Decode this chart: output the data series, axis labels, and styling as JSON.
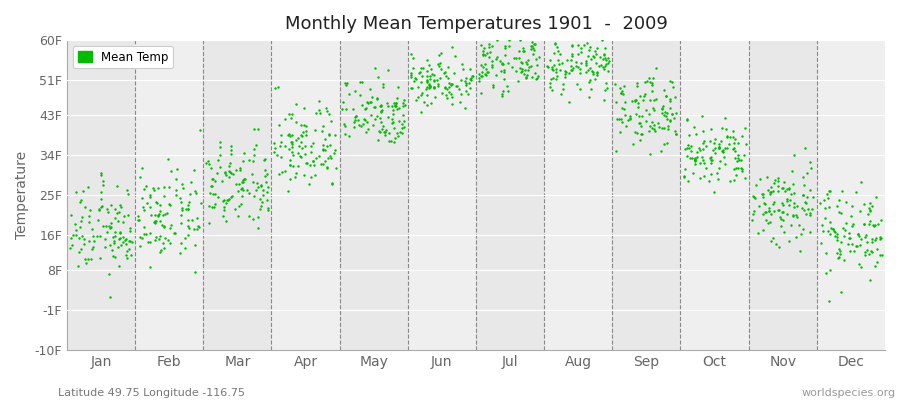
{
  "title": "Monthly Mean Temperatures 1901  -  2009",
  "ylabel": "Temperature",
  "xlabel_lat_lon": "Latitude 49.75 Longitude -116.75",
  "watermark": "worldspecies.org",
  "dot_color": "#00bb00",
  "dot_size": 3,
  "ylim": [
    -10,
    60
  ],
  "yticks": [
    -10,
    -1,
    8,
    16,
    25,
    34,
    43,
    51,
    60
  ],
  "ytick_labels": [
    "-10F",
    "-1F",
    "8F",
    "16F",
    "25F",
    "34F",
    "43F",
    "51F",
    "60F"
  ],
  "months": [
    "Jan",
    "Feb",
    "Mar",
    "Apr",
    "May",
    "Jun",
    "Jul",
    "Aug",
    "Sep",
    "Oct",
    "Nov",
    "Dec"
  ],
  "monthly_means_F": [
    17,
    20,
    27,
    36,
    44,
    51,
    55,
    54,
    44,
    34,
    23,
    17
  ],
  "monthly_stds_F": [
    5,
    5,
    5,
    5,
    4,
    3,
    3,
    3,
    4,
    4,
    5,
    5
  ],
  "n_years": 109,
  "band_colors": [
    "#e8e8e8",
    "#efefef"
  ],
  "grid_color": "#ffffff",
  "spine_color": "#aaaaaa",
  "tick_color": "#666666",
  "vline_color": "#888888",
  "legend_edge_color": "#cccccc",
  "bg_color": "#f0f0f0"
}
